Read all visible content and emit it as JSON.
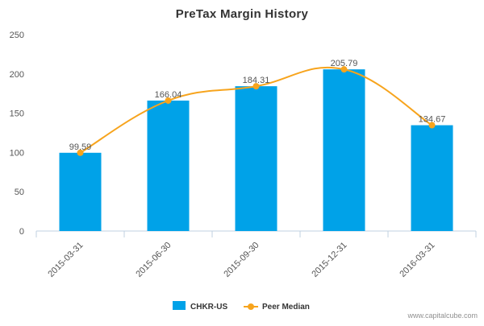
{
  "chart_data": {
    "type": "bar",
    "title": "PreTax Margin History",
    "categories": [
      "2015-03-31",
      "2015-06-30",
      "2015-09-30",
      "2015-12-31",
      "2016-03-31"
    ],
    "series": [
      {
        "name": "CHKR-US",
        "type": "bar",
        "values": [
          99.59,
          166.04,
          184.31,
          205.79,
          134.67
        ],
        "data_labels": [
          "99.59",
          "166.04",
          "184.31",
          "205.79",
          "134.67"
        ],
        "color": "#00a2e8"
      },
      {
        "name": "Peer Median",
        "type": "line",
        "values": [
          99.59,
          166.04,
          184.31,
          205.79,
          134.67
        ],
        "color": "#f7a41d"
      }
    ],
    "ylim": [
      0,
      250
    ],
    "yticks": [
      "0",
      "50",
      "100",
      "150",
      "200",
      "250"
    ],
    "grid": false,
    "legend_position": "bottom-center"
  },
  "credit": "www.capitalcube.com"
}
